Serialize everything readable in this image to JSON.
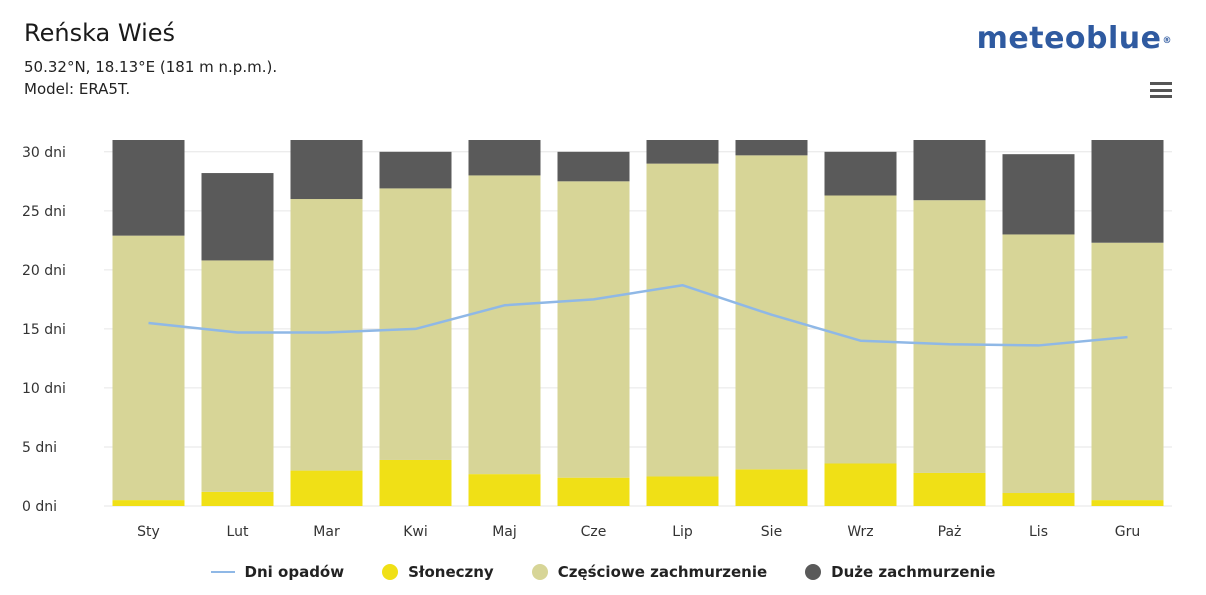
{
  "header": {
    "title": "Reńska Wieś",
    "coords": "50.32°N, 18.13°E (181 m n.p.m.).",
    "model": "Model: ERA5T.",
    "logo": "meteoblue",
    "menu_icon": "hamburger-menu-icon"
  },
  "chart_data": {
    "type": "bar",
    "stacked": true,
    "categories": [
      "Sty",
      "Lut",
      "Mar",
      "Kwi",
      "Maj",
      "Cze",
      "Lip",
      "Sie",
      "Wrz",
      "Paż",
      "Lis",
      "Gru"
    ],
    "series": [
      {
        "name": "Słoneczny",
        "kind": "bar",
        "color": "#f0e016",
        "values": [
          0.5,
          1.2,
          3.0,
          3.9,
          2.7,
          2.4,
          2.5,
          3.1,
          3.6,
          2.8,
          1.1,
          0.5
        ]
      },
      {
        "name": "Częściowe zachmurzenie",
        "kind": "bar",
        "color": "#d7d597",
        "values": [
          22.4,
          19.6,
          23.0,
          23.0,
          25.3,
          25.1,
          26.5,
          26.6,
          22.7,
          23.1,
          21.9,
          21.8
        ]
      },
      {
        "name": "Duże zachmurzenie",
        "kind": "bar",
        "color": "#5a5a5a",
        "values": [
          8.1,
          7.4,
          5.0,
          3.1,
          3.0,
          2.5,
          2.0,
          1.3,
          3.7,
          5.1,
          6.8,
          8.7
        ]
      },
      {
        "name": "Dni opadów",
        "kind": "line",
        "color": "#8fb8e6",
        "values": [
          15.5,
          14.7,
          14.7,
          15.0,
          17.0,
          17.5,
          18.7,
          16.2,
          14.0,
          13.7,
          13.6,
          14.3
        ]
      }
    ],
    "yticks": [
      "0 dni",
      "5 dni",
      "10 dni",
      "15 dni",
      "20 dni",
      "25 dni",
      "30 dni"
    ],
    "ylim": [
      0,
      31
    ],
    "grid": true,
    "legend_position": "bottom"
  }
}
